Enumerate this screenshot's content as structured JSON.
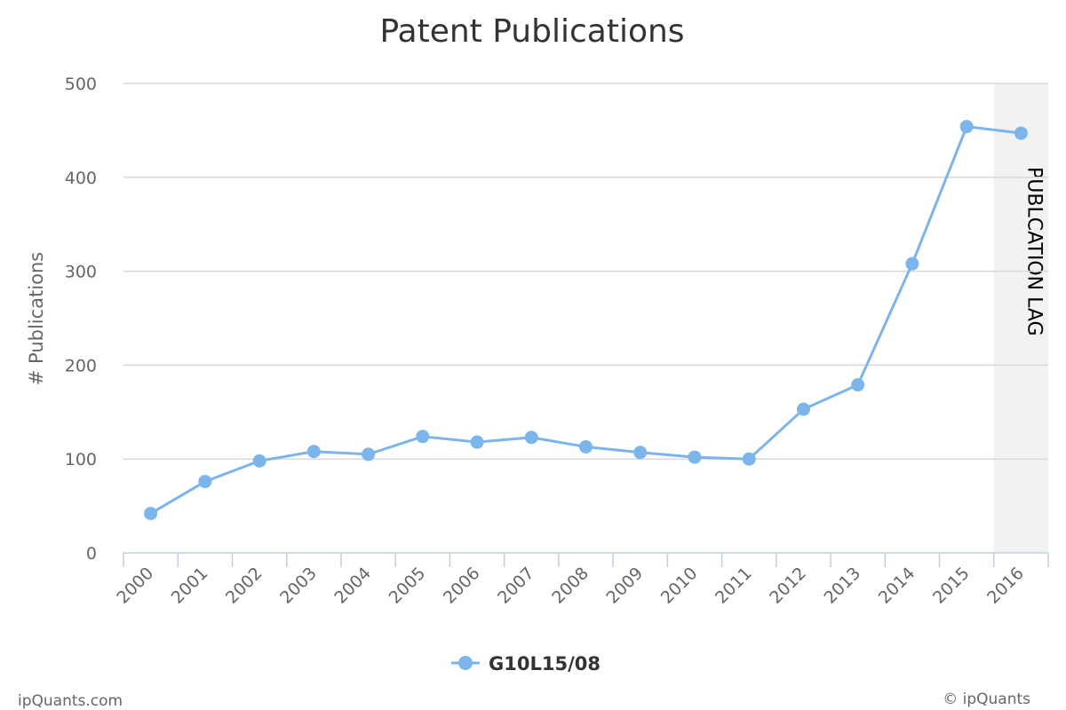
{
  "chart_data": {
    "type": "line",
    "title": "Patent Publications",
    "xlabel": "",
    "ylabel": "# Publications",
    "categories": [
      "2000",
      "2001",
      "2002",
      "2003",
      "2004",
      "2005",
      "2006",
      "2007",
      "2008",
      "2009",
      "2010",
      "2011",
      "2012",
      "2013",
      "2014",
      "2015",
      "2016"
    ],
    "series": [
      {
        "name": "G10L15/08",
        "color": "#7cb5ec",
        "values": [
          42,
          76,
          98,
          108,
          105,
          124,
          118,
          123,
          113,
          107,
          102,
          100,
          153,
          179,
          308,
          454,
          447
        ]
      }
    ],
    "ylim": [
      0,
      500
    ],
    "yticks": [
      0,
      100,
      200,
      300,
      400,
      500
    ],
    "grid": true,
    "legend": "bottom-center",
    "plot_band": {
      "category": "2016",
      "label": "PUBLCATION LAG",
      "color": "#f2f2f2"
    }
  },
  "credits": {
    "left": "ipQuants.com",
    "right": "© ipQuants"
  }
}
